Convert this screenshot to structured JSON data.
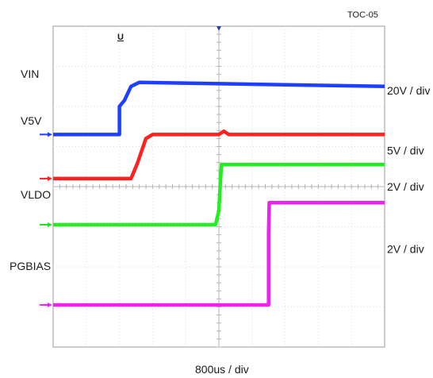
{
  "figure_id": "TOC-05",
  "time_scale": "800us / div",
  "marker_label": "U",
  "chart_data": {
    "type": "line",
    "x_unit": "div",
    "xlim": [
      0,
      10
    ],
    "ylim": [
      0,
      8
    ],
    "grid": true,
    "series": [
      {
        "name": "VIN",
        "scale": "20V / div",
        "color": "#1f3fff",
        "marker_color": "#1f3fff",
        "marker_level": 5.3,
        "scale_level": 6.4,
        "points": [
          [
            0,
            5.3
          ],
          [
            2.0,
            5.3
          ],
          [
            2.0,
            6.0
          ],
          [
            2.15,
            6.15
          ],
          [
            2.35,
            6.5
          ],
          [
            2.6,
            6.6
          ],
          [
            10,
            6.5
          ]
        ]
      },
      {
        "name": "V5V",
        "scale": "5V / div",
        "color": "#ff2020",
        "marker_color": "#ff2020",
        "marker_level": 4.2,
        "scale_level": 4.9,
        "points": [
          [
            0,
            4.2
          ],
          [
            2.35,
            4.2
          ],
          [
            2.55,
            4.6
          ],
          [
            2.8,
            5.2
          ],
          [
            3.0,
            5.3
          ],
          [
            5.0,
            5.3
          ],
          [
            5.15,
            5.38
          ],
          [
            5.3,
            5.3
          ],
          [
            10,
            5.3
          ]
        ]
      },
      {
        "name": "VLDO",
        "scale": "2V / div",
        "color": "#22ee22",
        "marker_color": "#22dd22",
        "marker_level": 3.05,
        "scale_level": 4.0,
        "points": [
          [
            0,
            3.05
          ],
          [
            4.9,
            3.05
          ],
          [
            5.0,
            3.4
          ],
          [
            5.05,
            4.2
          ],
          [
            5.08,
            4.55
          ],
          [
            10,
            4.55
          ]
        ]
      },
      {
        "name": "PGBIAS",
        "scale": "2V / div",
        "color": "#ee22ee",
        "marker_color": "#ee22ee",
        "marker_level": 1.05,
        "scale_level": 2.45,
        "points": [
          [
            0,
            1.05
          ],
          [
            6.5,
            1.05
          ],
          [
            6.5,
            2.85
          ],
          [
            6.52,
            3.6
          ],
          [
            6.55,
            3.6
          ],
          [
            10,
            3.6
          ]
        ]
      }
    ]
  }
}
